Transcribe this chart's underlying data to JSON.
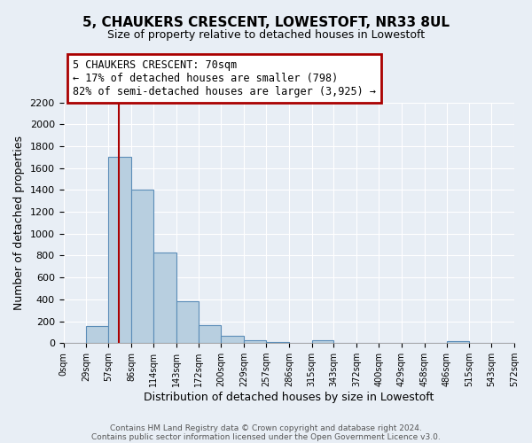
{
  "title": "5, CHAUKERS CRESCENT, LOWESTOFT, NR33 8UL",
  "subtitle": "Size of property relative to detached houses in Lowestoft",
  "xlabel": "Distribution of detached houses by size in Lowestoft",
  "ylabel": "Number of detached properties",
  "bin_edges": [
    0,
    29,
    57,
    86,
    114,
    143,
    172,
    200,
    229,
    257,
    286,
    315,
    343,
    372,
    400,
    429,
    458,
    486,
    515,
    543,
    572
  ],
  "bin_labels": [
    "0sqm",
    "29sqm",
    "57sqm",
    "86sqm",
    "114sqm",
    "143sqm",
    "172sqm",
    "200sqm",
    "229sqm",
    "257sqm",
    "286sqm",
    "315sqm",
    "343sqm",
    "372sqm",
    "400sqm",
    "429sqm",
    "458sqm",
    "486sqm",
    "515sqm",
    "543sqm",
    "572sqm"
  ],
  "bar_heights": [
    0,
    155,
    1700,
    1400,
    830,
    385,
    160,
    65,
    30,
    10,
    0,
    25,
    0,
    0,
    0,
    0,
    0,
    15,
    0,
    0
  ],
  "bar_color": "#b8cfe0",
  "bar_edge_color": "#5b8db8",
  "ylim": [
    0,
    2200
  ],
  "yticks": [
    0,
    200,
    400,
    600,
    800,
    1000,
    1200,
    1400,
    1600,
    1800,
    2000,
    2200
  ],
  "property_line_x": 70,
  "property_line_color": "#aa0000",
  "annotation_title": "5 CHAUKERS CRESCENT: 70sqm",
  "annotation_line1": "← 17% of detached houses are smaller (798)",
  "annotation_line2": "82% of semi-detached houses are larger (3,925) →",
  "background_color": "#e8eef5",
  "plot_background": "#e8eef5",
  "grid_color": "#ffffff",
  "footer_line1": "Contains HM Land Registry data © Crown copyright and database right 2024.",
  "footer_line2": "Contains public sector information licensed under the Open Government Licence v3.0."
}
